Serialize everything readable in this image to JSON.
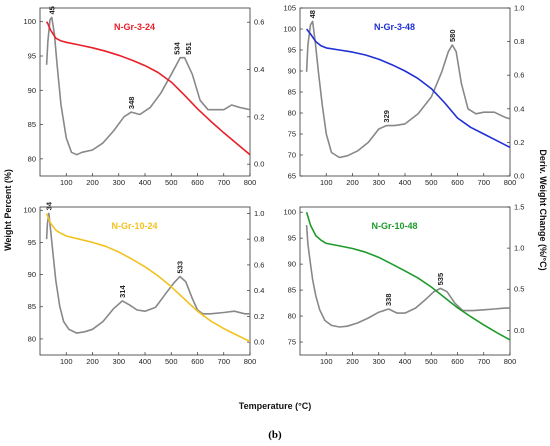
{
  "figure": {
    "caption": "(b)",
    "xlabel": "Temperature (°C)",
    "ylabel_left": "Weight Percent (%)",
    "ylabel_right": "Deriv. Weight Change (%/°C)"
  },
  "chart_data": [
    {
      "type": "line",
      "title": "N-Gr-3-24",
      "title_color": "#e8202a",
      "xlim": [
        0,
        800
      ],
      "xticks": [
        100,
        200,
        300,
        400,
        500,
        600,
        700,
        800
      ],
      "ylim": [
        77.5,
        102
      ],
      "yticks": [
        80,
        85,
        90,
        95,
        100
      ],
      "y2lim": [
        -0.05,
        0.66
      ],
      "y2ticks": [
        0.0,
        0.2,
        0.4,
        0.6
      ],
      "y2tick_format": "1",
      "grid": false,
      "series": [
        {
          "role": "weight",
          "color": "#e8202a",
          "axis": "left",
          "x": [
            25,
            30,
            40,
            60,
            80,
            100,
            150,
            200,
            250,
            300,
            350,
            400,
            450,
            500,
            550,
            600,
            650,
            700,
            750,
            800
          ],
          "y": [
            100.0,
            99.7,
            98.8,
            97.6,
            97.2,
            97.0,
            96.6,
            96.2,
            95.7,
            95.1,
            94.4,
            93.6,
            92.6,
            91.2,
            89.3,
            87.3,
            85.5,
            83.8,
            82.2,
            80.6
          ]
        },
        {
          "role": "derivative",
          "color": "#888888",
          "axis": "right",
          "x": [
            25,
            30,
            38,
            45,
            55,
            65,
            80,
            100,
            120,
            140,
            160,
            200,
            240,
            280,
            320,
            348,
            380,
            420,
            460,
            500,
            534,
            551,
            580,
            610,
            640,
            670,
            700,
            730,
            760,
            800
          ],
          "y": [
            0.42,
            0.52,
            0.61,
            0.62,
            0.55,
            0.42,
            0.25,
            0.11,
            0.05,
            0.04,
            0.05,
            0.06,
            0.09,
            0.14,
            0.2,
            0.22,
            0.21,
            0.24,
            0.3,
            0.38,
            0.45,
            0.45,
            0.38,
            0.27,
            0.23,
            0.23,
            0.23,
            0.25,
            0.24,
            0.23
          ]
        }
      ],
      "peaks": [
        {
          "label": "45",
          "x": 45,
          "y2": 0.62
        },
        {
          "label": "348",
          "x": 348,
          "y2": 0.22
        },
        {
          "label": "534",
          "x": 534,
          "y2": 0.45
        },
        {
          "label": "551",
          "x": 551,
          "y2": 0.45
        }
      ]
    },
    {
      "type": "line",
      "title": "N-Gr-3-48",
      "title_color": "#1f2fd6",
      "xlim": [
        0,
        800
      ],
      "xticks": [
        100,
        200,
        300,
        400,
        500,
        600,
        700,
        800
      ],
      "ylim": [
        65,
        105
      ],
      "yticks": [
        65,
        70,
        75,
        80,
        85,
        90,
        95,
        100,
        105
      ],
      "y2lim": [
        0.0,
        1.0
      ],
      "y2ticks": [
        0.0,
        0.2,
        0.4,
        0.6,
        0.8,
        1.0
      ],
      "y2tick_format": "1",
      "grid": false,
      "series": [
        {
          "role": "weight",
          "color": "#1f2fd6",
          "axis": "left",
          "x": [
            25,
            40,
            60,
            80,
            100,
            150,
            200,
            250,
            300,
            350,
            400,
            450,
            500,
            550,
            600,
            650,
            700,
            750,
            800
          ],
          "y": [
            100.0,
            98.8,
            97.0,
            96.0,
            95.5,
            95.0,
            94.5,
            93.8,
            92.8,
            91.5,
            90.0,
            88.2,
            85.8,
            82.5,
            78.8,
            76.6,
            75.0,
            73.4,
            71.8
          ]
        },
        {
          "role": "derivative",
          "color": "#888888",
          "axis": "right",
          "x": [
            25,
            30,
            40,
            48,
            58,
            70,
            85,
            100,
            120,
            150,
            180,
            220,
            260,
            300,
            329,
            360,
            400,
            450,
            500,
            540,
            565,
            580,
            595,
            615,
            640,
            670,
            700,
            740,
            780,
            800
          ],
          "y": [
            0.62,
            0.78,
            0.9,
            0.92,
            0.8,
            0.62,
            0.42,
            0.25,
            0.14,
            0.11,
            0.12,
            0.15,
            0.2,
            0.28,
            0.3,
            0.3,
            0.31,
            0.37,
            0.47,
            0.62,
            0.74,
            0.78,
            0.74,
            0.55,
            0.4,
            0.37,
            0.38,
            0.38,
            0.35,
            0.34
          ]
        }
      ],
      "peaks": [
        {
          "label": "48",
          "x": 48,
          "y2": 0.92
        },
        {
          "label": "329",
          "x": 329,
          "y2": 0.3
        },
        {
          "label": "580",
          "x": 580,
          "y2": 0.78
        }
      ]
    },
    {
      "type": "line",
      "title": "N-Gr-10-24",
      "title_color": "#f2c21f",
      "xlim": [
        0,
        800
      ],
      "xticks": [
        100,
        200,
        300,
        400,
        500,
        600,
        700,
        800
      ],
      "ylim": [
        77.5,
        100.5
      ],
      "yticks": [
        80,
        85,
        90,
        95,
        100
      ],
      "y2lim": [
        -0.1,
        1.05
      ],
      "y2ticks": [
        0.0,
        0.2,
        0.4,
        0.6,
        0.8,
        1.0
      ],
      "y2tick_format": "1",
      "grid": false,
      "series": [
        {
          "role": "weight",
          "color": "#f2c21f",
          "axis": "left",
          "x": [
            25,
            40,
            60,
            80,
            100,
            150,
            200,
            250,
            300,
            350,
            400,
            450,
            500,
            550,
            600,
            650,
            700,
            750,
            800
          ],
          "y": [
            99.5,
            98.0,
            96.9,
            96.4,
            96.0,
            95.5,
            95.0,
            94.4,
            93.5,
            92.4,
            91.2,
            89.8,
            88.1,
            86.2,
            84.3,
            82.8,
            81.6,
            80.6,
            79.6
          ]
        },
        {
          "role": "derivative",
          "color": "#888888",
          "axis": "right",
          "x": [
            25,
            28,
            34,
            40,
            50,
            60,
            75,
            90,
            110,
            140,
            170,
            200,
            240,
            280,
            314,
            340,
            370,
            400,
            440,
            480,
            510,
            533,
            555,
            580,
            600,
            620,
            650,
            700,
            740,
            780,
            800
          ],
          "y": [
            0.8,
            0.92,
            1.0,
            0.88,
            0.68,
            0.48,
            0.28,
            0.16,
            0.1,
            0.07,
            0.08,
            0.1,
            0.16,
            0.26,
            0.32,
            0.29,
            0.25,
            0.24,
            0.27,
            0.38,
            0.46,
            0.51,
            0.47,
            0.34,
            0.25,
            0.22,
            0.22,
            0.23,
            0.24,
            0.22,
            0.22
          ]
        }
      ],
      "peaks": [
        {
          "label": "34",
          "x": 34,
          "y2": 1.0
        },
        {
          "label": "314",
          "x": 314,
          "y2": 0.32
        },
        {
          "label": "533",
          "x": 533,
          "y2": 0.51
        }
      ]
    },
    {
      "type": "line",
      "title": "N-Gr-10-48",
      "title_color": "#1e9a2a",
      "xlim": [
        0,
        800
      ],
      "xticks": [
        100,
        200,
        300,
        400,
        500,
        600,
        700,
        800
      ],
      "ylim": [
        72.5,
        101
      ],
      "yticks": [
        75,
        80,
        85,
        90,
        95,
        100
      ],
      "y2lim": [
        -0.3,
        1.5
      ],
      "y2ticks": [
        0.0,
        0.5,
        1.0,
        1.5
      ],
      "y2tick_format": "1",
      "grid": false,
      "series": [
        {
          "role": "weight",
          "color": "#1e9a2a",
          "axis": "left",
          "x": [
            25,
            40,
            60,
            80,
            100,
            150,
            200,
            250,
            300,
            350,
            400,
            450,
            500,
            550,
            600,
            650,
            700,
            750,
            800
          ],
          "y": [
            100.0,
            97.5,
            95.5,
            94.6,
            94.0,
            93.5,
            93.0,
            92.3,
            91.3,
            90.0,
            88.7,
            87.3,
            85.6,
            83.6,
            81.6,
            79.9,
            78.3,
            76.8,
            75.4
          ]
        },
        {
          "role": "derivative",
          "color": "#888888",
          "axis": "right",
          "x": [
            25,
            30,
            38,
            48,
            60,
            75,
            95,
            120,
            150,
            180,
            220,
            260,
            300,
            338,
            370,
            400,
            440,
            480,
            510,
            535,
            560,
            590,
            620,
            660,
            700,
            740,
            780,
            800
          ],
          "y": [
            1.28,
            1.05,
            0.85,
            0.62,
            0.42,
            0.25,
            0.12,
            0.06,
            0.04,
            0.05,
            0.09,
            0.15,
            0.22,
            0.26,
            0.21,
            0.21,
            0.27,
            0.38,
            0.47,
            0.51,
            0.47,
            0.33,
            0.24,
            0.24,
            0.25,
            0.26,
            0.27,
            0.27
          ]
        }
      ],
      "peaks": [
        {
          "label": "338",
          "x": 338,
          "y2": 0.26
        },
        {
          "label": "535",
          "x": 535,
          "y2": 0.51
        }
      ]
    }
  ]
}
